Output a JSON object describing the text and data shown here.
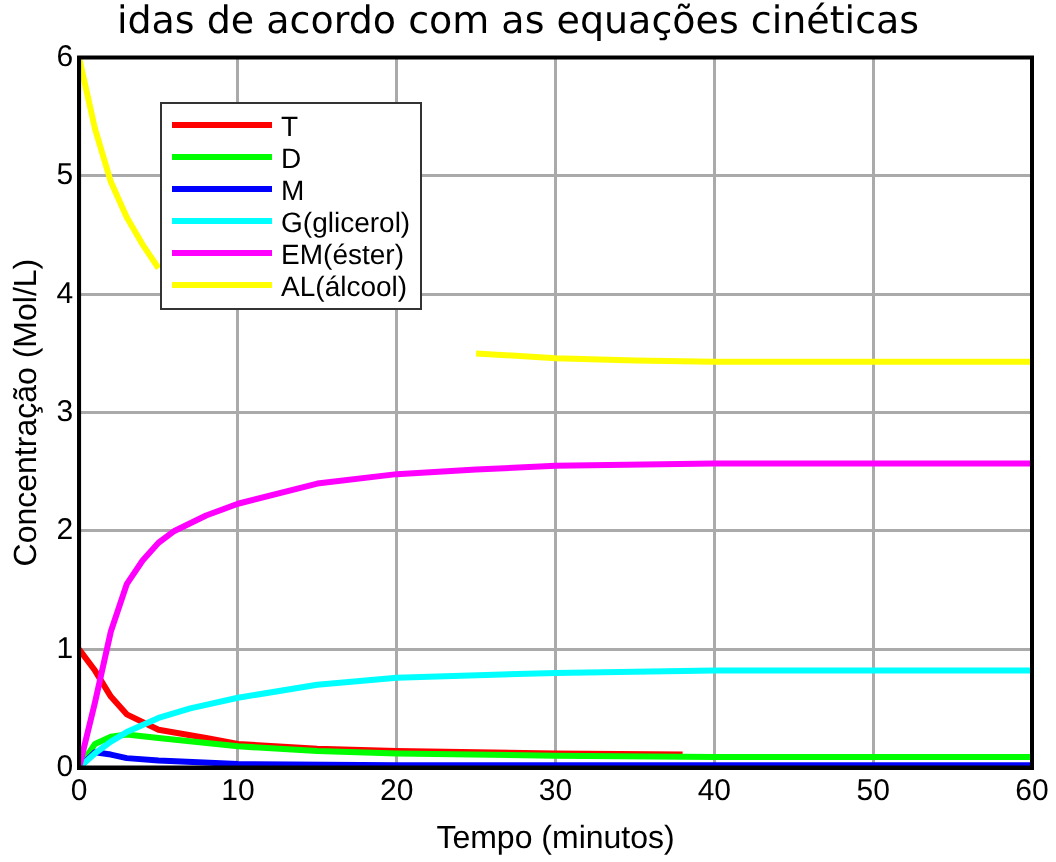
{
  "chart_data": {
    "type": "line",
    "title": "idas de acordo com as equações cinéticas",
    "xlabel": "Tempo (minutos)",
    "ylabel": "Concentração (Mol/L)",
    "xlim": [
      0,
      60
    ],
    "xticks": [
      0,
      10,
      20,
      30,
      40,
      50,
      60
    ],
    "ylim": [
      0,
      6
    ],
    "yticks": [
      0,
      1,
      2,
      3,
      4,
      5,
      6
    ],
    "grid": true,
    "legend": "top left",
    "marker": "none",
    "line_style": "solid",
    "series": [
      {
        "name": "T",
        "color": "#ff0000",
        "x": [
          0,
          1,
          2,
          3,
          5,
          8,
          10,
          15,
          20,
          30,
          38
        ],
        "values": [
          1.0,
          0.82,
          0.6,
          0.45,
          0.32,
          0.25,
          0.2,
          0.16,
          0.14,
          0.12,
          0.11
        ]
      },
      {
        "name": "D",
        "color": "#00ff00",
        "x": [
          0,
          1,
          2,
          3,
          5,
          10,
          15,
          20,
          30,
          40,
          60
        ],
        "values": [
          0,
          0.2,
          0.26,
          0.28,
          0.25,
          0.18,
          0.14,
          0.12,
          0.1,
          0.09,
          0.09
        ]
      },
      {
        "name": "M",
        "color": "#0000ff",
        "x": [
          0,
          1,
          2,
          3,
          5,
          10,
          20,
          30,
          60
        ],
        "values": [
          0,
          0.13,
          0.11,
          0.08,
          0.06,
          0.03,
          0.02,
          0.02,
          0.02
        ]
      },
      {
        "name": "G(glicerol)",
        "color": "#00ffff",
        "x": [
          0,
          1,
          2,
          3,
          5,
          7,
          10,
          15,
          20,
          30,
          40,
          60
        ],
        "values": [
          0,
          0.12,
          0.22,
          0.3,
          0.42,
          0.5,
          0.59,
          0.7,
          0.76,
          0.8,
          0.82,
          0.82
        ]
      },
      {
        "name": "EM(éster)",
        "color": "#ff00ff",
        "x": [
          0,
          1,
          2,
          3,
          4,
          5,
          6,
          8,
          10,
          15,
          20,
          25,
          30,
          40,
          50,
          60
        ],
        "values": [
          0,
          0.55,
          1.15,
          1.55,
          1.75,
          1.9,
          2.0,
          2.13,
          2.23,
          2.4,
          2.48,
          2.52,
          2.55,
          2.57,
          2.57,
          2.57
        ]
      },
      {
        "name": "AL(álcool)",
        "color": "#ffff00",
        "x": [
          0,
          1,
          2,
          3,
          4,
          5,
          6,
          25,
          30,
          35,
          40,
          50,
          60
        ],
        "values": [
          6,
          5.4,
          4.95,
          4.65,
          4.42,
          4.22,
          null,
          3.5,
          3.46,
          3.44,
          3.43,
          3.43,
          3.43
        ]
      }
    ]
  }
}
